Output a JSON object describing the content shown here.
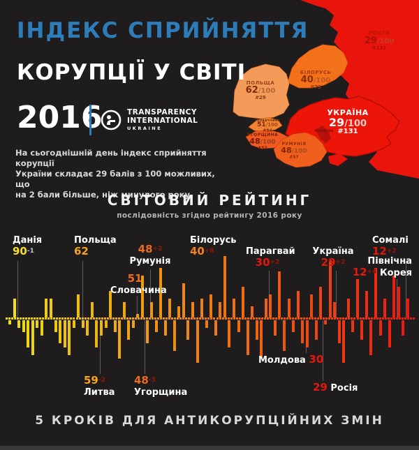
{
  "header": {
    "title_line1": "ІНДЕКС СПРИЙНЯТТЯ",
    "title_line2": "КОРУПЦІЇ У СВІТІ",
    "year": "2016",
    "logo": {
      "line1": "TRANSPARENCY",
      "line2": "INTERNATIONAL",
      "line3": "UKRAINE"
    },
    "intro_lines": [
      "На сьогоднішній день індекс сприйняття корупції",
      "України складає 29 балів з 100 можливих, що",
      "на 2 бали більше, ніж минулого року."
    ]
  },
  "map": {
    "countries": [
      {
        "id": "poland",
        "name": "ПОЛЬЩА",
        "score": "62",
        "total": "/100",
        "rank": "#29"
      },
      {
        "id": "belarus",
        "name": "БІЛОРУСЬ",
        "score": "40",
        "total": "/100",
        "rank": "#79"
      },
      {
        "id": "ukraine",
        "name": "УКРАЇНА",
        "score": "29",
        "total": "/100",
        "rank": "#131"
      },
      {
        "id": "russia",
        "name": "РОСІЯ",
        "score": "29",
        "total": "/100",
        "rank": "#131"
      },
      {
        "id": "slovakia",
        "name": "СЛОВАЧЧИНА",
        "score": "51",
        "total": "/100",
        "rank": "#54"
      },
      {
        "id": "hungary",
        "name": "УГОРЩИНА",
        "score": "48",
        "total": "/100",
        "rank": "#57"
      },
      {
        "id": "romania",
        "name": "РУМУНІЯ",
        "score": "48",
        "total": "/100",
        "rank": "#57"
      },
      {
        "id": "moldova",
        "name": "МОЛДОВА",
        "score": "",
        "total": "",
        "rank": ""
      }
    ]
  },
  "ranking": {
    "title": "СВІТОВИЙ РЕЙТИНГ",
    "subtitle": "послідовність згідно рейтингу 2016 року"
  },
  "chart_data": {
    "type": "bar",
    "title": "СВІТОВИЙ РЕЙТИНГ",
    "subtitle": "послідовність згідно рейтингу 2016 року",
    "note": "countries ordered by CPI 2016 rank; bar = year-over-year change, yellow (best) to red (worst)",
    "labeled_countries": [
      {
        "name": "Данія",
        "score": 90,
        "change": "-1",
        "label_side": "top"
      },
      {
        "name": "Польща",
        "score": 62,
        "change": "",
        "label_side": "top"
      },
      {
        "name": "Литва",
        "score": 59,
        "change": "-2",
        "label_side": "bottom"
      },
      {
        "name": "Словачина",
        "score": 51,
        "change": "",
        "label_side": "top"
      },
      {
        "name": "Румунія",
        "score": 48,
        "change": "+2",
        "label_side": "top"
      },
      {
        "name": "Угорщина",
        "score": 48,
        "change": "-3",
        "label_side": "bottom"
      },
      {
        "name": "Білорусь",
        "score": 40,
        "change": "+8",
        "label_side": "top"
      },
      {
        "name": "Парагвай",
        "score": 30,
        "change": "+2",
        "label_side": "top"
      },
      {
        "name": "Молдова",
        "score": 30,
        "change": "",
        "label_side": "bottom"
      },
      {
        "name": "Україна",
        "score": 29,
        "change": "+2",
        "label_side": "top"
      },
      {
        "name": "Росія",
        "score": 29,
        "change": "",
        "label_side": "bottom"
      },
      {
        "name": "Північна Корея",
        "score": 12,
        "change": "+4",
        "label_side": "top"
      },
      {
        "name": "Сомалі",
        "score": 12,
        "change": "+2",
        "label_side": "top"
      }
    ],
    "bars": [
      -0.5,
      2.5,
      -1,
      -1.5,
      -3.5,
      -4.5,
      -1,
      -2,
      2.5,
      2.5,
      -1.5,
      -3,
      -3.5,
      -4.5,
      -1,
      3,
      -1,
      -2,
      2,
      -3.5,
      -2,
      -1,
      3.5,
      -1.5,
      -5,
      2,
      -2.5,
      -1,
      0.5,
      5.5,
      -3,
      2,
      -1.5,
      6.5,
      -2,
      2.5,
      -4,
      1.5,
      4.5,
      -2.5,
      2,
      -5.5,
      2.5,
      -1,
      3,
      -2,
      2,
      8,
      -3.5,
      2.5,
      -1.5,
      4,
      -4.5,
      1.5,
      -2.5,
      -5,
      2.5,
      3,
      -2,
      6,
      -4,
      2.5,
      -1.5,
      3.5,
      -3,
      -3.5,
      3,
      -2.5,
      4,
      -0.5,
      7.5,
      2,
      -3,
      -5.5,
      2.5,
      -1.5,
      5,
      -2.5,
      3.5,
      -4.5,
      6.5,
      -2,
      2.5,
      -3.5,
      5.5,
      4,
      -2,
      2.5
    ]
  },
  "footer": {
    "title": "5 КРОКІВ ДЛЯ АНТИКОРУПЦІЙНИХ ЗМІН"
  },
  "colors": {
    "bg": "#1e1c1c",
    "blue": "#2d7dba",
    "white": "#ffffff",
    "yellow": "#f2e023",
    "gold": "#f6a41c",
    "orange": "#f2821c",
    "deeporange": "#ee6a1d",
    "red": "#e3170c",
    "darkred": "#9a1509",
    "gray": "#c9c9c9",
    "map_red": "#e9150d",
    "map_orange": "#f4711c",
    "map_light_orange": "#f59b59"
  }
}
